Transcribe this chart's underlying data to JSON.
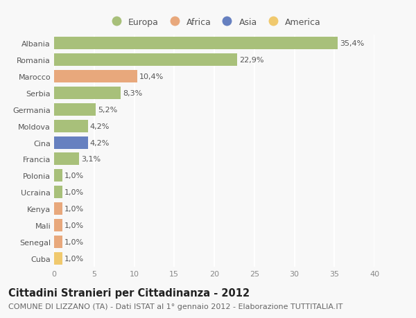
{
  "categories": [
    "Albania",
    "Romania",
    "Marocco",
    "Serbia",
    "Germania",
    "Moldova",
    "Cina",
    "Francia",
    "Polonia",
    "Ucraina",
    "Kenya",
    "Mali",
    "Senegal",
    "Cuba"
  ],
  "values": [
    35.4,
    22.9,
    10.4,
    8.3,
    5.2,
    4.2,
    4.2,
    3.1,
    1.0,
    1.0,
    1.0,
    1.0,
    1.0,
    1.0
  ],
  "continents": [
    "Europa",
    "Europa",
    "Africa",
    "Europa",
    "Europa",
    "Europa",
    "Asia",
    "Europa",
    "Europa",
    "Europa",
    "Africa",
    "Africa",
    "Africa",
    "America"
  ],
  "bar_colors": {
    "Europa": "#a8c07a",
    "Africa": "#e8a87c",
    "Asia": "#6680c0",
    "America": "#f0c96e"
  },
  "labels": [
    "35,4%",
    "22,9%",
    "10,4%",
    "8,3%",
    "5,2%",
    "4,2%",
    "4,2%",
    "3,1%",
    "1,0%",
    "1,0%",
    "1,0%",
    "1,0%",
    "1,0%",
    "1,0%"
  ],
  "xlim": [
    0,
    40
  ],
  "xticks": [
    0,
    5,
    10,
    15,
    20,
    25,
    30,
    35,
    40
  ],
  "title": "Cittadini Stranieri per Cittadinanza - 2012",
  "subtitle": "COMUNE DI LIZZANO (TA) - Dati ISTAT al 1° gennaio 2012 - Elaborazione TUTTITALIA.IT",
  "background_color": "#f8f8f8",
  "grid_color": "#ffffff",
  "bar_height": 0.75,
  "title_fontsize": 10.5,
  "subtitle_fontsize": 8,
  "label_fontsize": 8,
  "tick_fontsize": 8,
  "legend_order": [
    "Europa",
    "Africa",
    "Asia",
    "America"
  ]
}
